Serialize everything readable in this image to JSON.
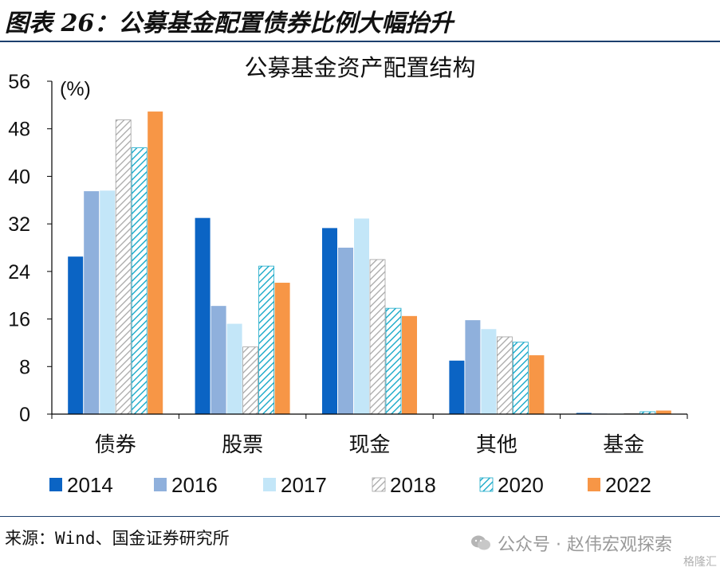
{
  "header": {
    "title": "图表 26：公募基金配置债券比例大幅抬升"
  },
  "chart_data": {
    "type": "bar",
    "title": "公募基金资产配置结构",
    "ylabel": "(%)",
    "ylim": [
      0,
      56
    ],
    "yticks": [
      0,
      8,
      16,
      24,
      32,
      40,
      48,
      56
    ],
    "categories": [
      "债券",
      "股票",
      "现金",
      "其他",
      "基金"
    ],
    "series": [
      {
        "name": "2014",
        "color": "#0b64c4",
        "pattern": "solid",
        "values": [
          26.5,
          33.0,
          31.3,
          9.0,
          0.2
        ]
      },
      {
        "name": "2016",
        "color": "#8fb0dc",
        "pattern": "solid",
        "values": [
          37.5,
          18.2,
          28.0,
          15.8,
          0.1
        ]
      },
      {
        "name": "2017",
        "color": "#c3e6f8",
        "pattern": "solid",
        "values": [
          37.6,
          15.2,
          32.9,
          14.3,
          0.1
        ]
      },
      {
        "name": "2018",
        "color": "#c8c8c8",
        "pattern": "hatch-gray",
        "values": [
          49.5,
          11.3,
          26.0,
          13.0,
          0.1
        ]
      },
      {
        "name": "2020",
        "color": "#16a8c8",
        "pattern": "hatch-cyan",
        "values": [
          44.8,
          24.9,
          17.8,
          12.1,
          0.4
        ]
      },
      {
        "name": "2022",
        "color": "#f79646",
        "pattern": "solid",
        "values": [
          50.9,
          22.1,
          16.5,
          9.9,
          0.6
        ]
      }
    ],
    "legend_position": "bottom",
    "grid": false
  },
  "footer": {
    "source": "来源：Wind、国金证券研究所",
    "watermark": "公众号 · 赵伟宏观探索",
    "corner_logo": "格隆汇",
    "watermark_icon": "wechat-icon"
  }
}
